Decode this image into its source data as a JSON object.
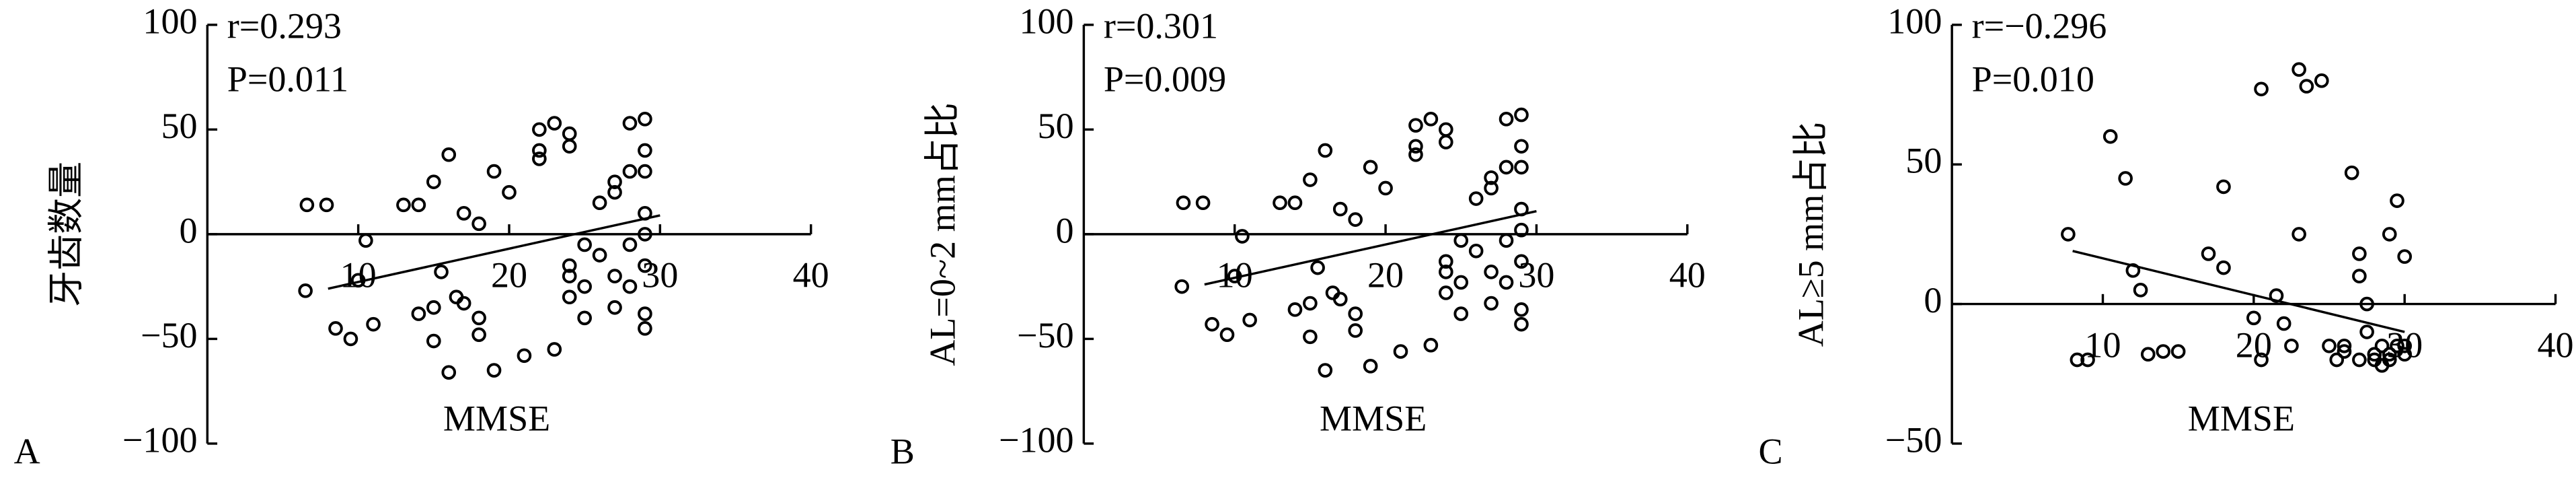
{
  "chart_data": [
    {
      "type": "scatter",
      "label": "A",
      "ylabel": "牙齿数量",
      "xlabel": "MMSE",
      "annotations": [
        "r=0.293",
        "P=0.011"
      ],
      "xlim": [
        0,
        40
      ],
      "xticks": [
        10,
        20,
        30,
        40
      ],
      "ylim": [
        -100,
        100
      ],
      "yticks": [
        {
          "value": -100,
          "label": "−100"
        },
        {
          "value": -50,
          "label": "−50"
        },
        0,
        50,
        100
      ],
      "x": [
        6.6,
        7.9,
        13,
        14,
        10.5,
        10,
        6.5,
        8.5,
        9.5,
        11,
        15,
        16,
        17,
        18,
        19,
        15.5,
        16.5,
        14,
        15,
        15,
        17,
        18,
        18,
        16,
        19,
        21,
        23,
        20,
        22,
        22,
        22,
        23,
        24,
        24,
        24,
        24,
        24,
        25,
        25,
        25,
        26,
        26,
        27,
        27,
        27,
        27,
        28,
        28,
        28,
        28,
        29,
        29,
        29,
        29,
        29,
        29,
        29,
        29
      ],
      "values": [
        14,
        14,
        14,
        14,
        -3,
        -22,
        -27,
        -45,
        -50,
        -43,
        25,
        38,
        10,
        5,
        30,
        -18,
        -30,
        -38,
        -35,
        -51,
        -33,
        -40,
        -48,
        -66,
        -65,
        -58,
        -55,
        20,
        40,
        36,
        50,
        53,
        48,
        42,
        -15,
        -20,
        -30,
        -5,
        -25,
        -40,
        15,
        -10,
        25,
        20,
        -20,
        -35,
        53,
        30,
        -5,
        -25,
        55,
        40,
        10,
        -15,
        -38,
        -45,
        30,
        0
      ],
      "fit": {
        "x": [
          8,
          30
        ],
        "values": [
          -26,
          9
        ]
      }
    },
    {
      "type": "scatter",
      "label": "B",
      "ylabel": "AL=0~2 mm占比",
      "xlabel": "MMSE",
      "annotations": [
        "r=0.301",
        "P=0.009"
      ],
      "xlim": [
        0,
        40
      ],
      "xticks": [
        10,
        20,
        30,
        40
      ],
      "ylim": [
        -100,
        100
      ],
      "yticks": [
        {
          "value": -100,
          "label": "−100"
        },
        {
          "value": -50,
          "label": "−50"
        },
        0,
        50,
        100
      ],
      "x": [
        6.6,
        7.9,
        13,
        14,
        10.5,
        10,
        6.5,
        8.5,
        9.5,
        11,
        15,
        16,
        17,
        18,
        19,
        15.5,
        16.5,
        14,
        15,
        15,
        17,
        18,
        18,
        16,
        19,
        21,
        23,
        20,
        22,
        22,
        22,
        23,
        24,
        24,
        24,
        24,
        24,
        25,
        25,
        25,
        26,
        26,
        27,
        27,
        27,
        27,
        28,
        28,
        28,
        28,
        29,
        29,
        29,
        29,
        29,
        29,
        29,
        29
      ],
      "values": [
        15,
        15,
        15,
        15,
        -1,
        -20,
        -25,
        -43,
        -48,
        -41,
        26,
        40,
        12,
        7,
        32,
        -16,
        -28,
        -36,
        -33,
        -49,
        -31,
        -38,
        -46,
        -65,
        -63,
        -56,
        -53,
        22,
        42,
        38,
        52,
        55,
        50,
        44,
        -13,
        -18,
        -28,
        -3,
        -23,
        -38,
        17,
        -8,
        27,
        22,
        -18,
        -33,
        55,
        32,
        -3,
        -23,
        57,
        42,
        12,
        -13,
        -36,
        -43,
        32,
        2
      ],
      "fit": {
        "x": [
          8,
          30
        ],
        "values": [
          -24,
          11
        ]
      }
    },
    {
      "type": "scatter",
      "label": "C",
      "ylabel": "AL≥5 mm占比",
      "xlabel": "MMSE",
      "annotations": [
        "r=−0.296",
        "P=0.010"
      ],
      "xlim": [
        0,
        40
      ],
      "xticks": [
        10,
        20,
        30,
        40
      ],
      "ylim": [
        -50,
        100
      ],
      "yticks": [
        {
          "value": -50,
          "label": "−50"
        },
        0,
        50,
        100
      ],
      "x": [
        7.7,
        8.3,
        9,
        10.5,
        11.5,
        12,
        12.5,
        13,
        14,
        15,
        17,
        18,
        18,
        20,
        20.5,
        20.5,
        21.5,
        22,
        22.5,
        23,
        23,
        23.5,
        24.5,
        25,
        25.5,
        26,
        26,
        26.5,
        27,
        27,
        27,
        27.5,
        27.5,
        28,
        28,
        28.5,
        28.5,
        29,
        29,
        29,
        29.5,
        29.5,
        30,
        30,
        30
      ],
      "values": [
        25,
        -20,
        -20,
        60,
        45,
        12,
        5,
        -18,
        -17,
        -17,
        18,
        13,
        42,
        -5,
        -20,
        77,
        3,
        -7,
        -15,
        84,
        25,
        78,
        80,
        -15,
        -20,
        -17,
        -15,
        47,
        10,
        -20,
        18,
        -10,
        0,
        -18,
        -20,
        -15,
        -22,
        25,
        -18,
        -20,
        37,
        -15,
        17,
        -18,
        -15
      ],
      "fit": {
        "x": [
          8,
          30
        ],
        "values": [
          19,
          -10
        ]
      }
    }
  ]
}
